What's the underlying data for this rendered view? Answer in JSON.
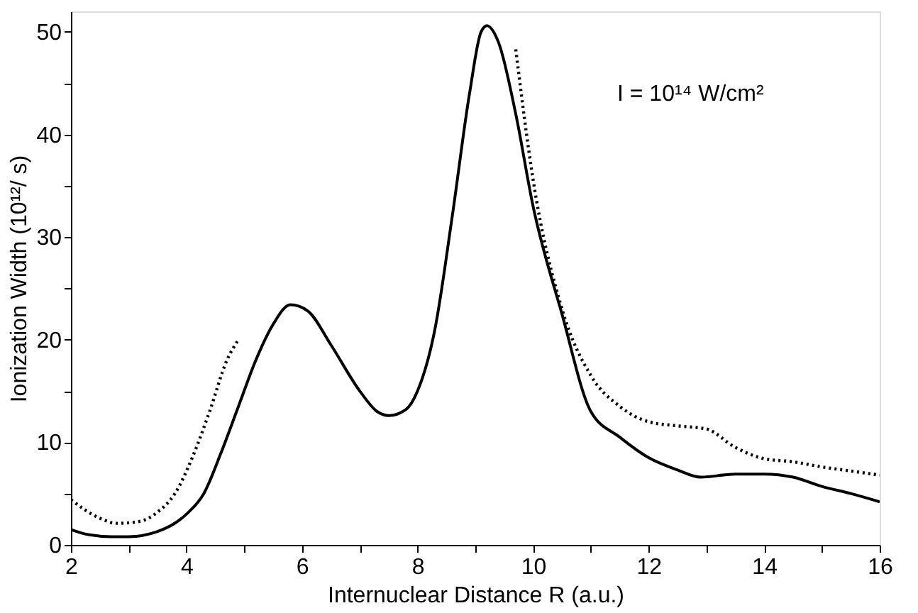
{
  "chart_data": {
    "type": "line",
    "xlabel": "Internuclear Distance R (a.u.)",
    "ylabel": "Ionization Width (10¹²/ s)",
    "annotations": [
      "I = 10¹⁴  W/cm²"
    ],
    "xlim": [
      2,
      16
    ],
    "ylim": [
      0,
      52
    ],
    "xticks": [
      2,
      {
        "value": 3,
        "label": null
      },
      4,
      {
        "value": 5,
        "label": null
      },
      6,
      {
        "value": 7,
        "label": null
      },
      8,
      {
        "value": 9,
        "label": null
      },
      10,
      {
        "value": 11,
        "label": null
      },
      12,
      {
        "value": 13,
        "label": null
      },
      14,
      {
        "value": 15,
        "label": null
      },
      16
    ],
    "yticks": [
      0,
      {
        "value": 5,
        "label": null
      },
      10,
      {
        "value": 15,
        "label": null
      },
      20,
      {
        "value": 25,
        "label": null
      },
      30,
      {
        "value": 35,
        "label": null
      },
      40,
      {
        "value": 45,
        "label": null
      },
      50
    ],
    "grid": false,
    "marker": "none",
    "series": [
      {
        "color": "#000000",
        "line_style": "solid",
        "x": [
          2,
          2.3,
          2.7,
          3.0,
          3.5,
          4.0,
          4.3,
          4.6,
          4.9,
          5.2,
          5.5,
          5.8,
          6.1,
          6.5,
          7.0,
          7.3,
          7.5,
          7.8,
          8.0,
          8.3,
          8.6,
          8.9,
          9.1,
          9.2,
          9.4,
          9.7,
          10,
          10.5,
          11,
          11.5,
          12,
          12.5,
          12.9,
          13.5,
          14,
          14.5,
          15,
          15.5,
          16
        ],
        "values": [
          1.5,
          1.0,
          0.8,
          0.8,
          1.3,
          3,
          5,
          9,
          13.5,
          18,
          21.5,
          23.4,
          22.8,
          19.5,
          15,
          13,
          12.6,
          13.2,
          15,
          21,
          32,
          44,
          50,
          50.6,
          49,
          42,
          33,
          22.5,
          13,
          10.5,
          8.5,
          7.3,
          6.6,
          6.9,
          6.9,
          6.6,
          5.7,
          5,
          4.2
        ]
      },
      {
        "color": "#000000",
        "line_style": "dotted",
        "x": [
          2,
          2.5,
          2.8,
          3.2,
          3.5,
          3.8,
          4.1,
          4.4,
          4.7,
          4.9,
          7,
          9.7,
          10,
          10.5,
          11,
          11.5,
          12,
          12.5,
          13,
          13.5,
          14,
          14.5,
          15,
          15.5,
          16
        ],
        "values": [
          4.4,
          2.6,
          2.1,
          2.3,
          3.2,
          5,
          8.5,
          13,
          18,
          20,
          null,
          48.3,
          35.6,
          23,
          16.5,
          13.5,
          12,
          11.6,
          11.3,
          9.5,
          8.4,
          8.1,
          7.6,
          7.2,
          6.8
        ]
      }
    ]
  }
}
